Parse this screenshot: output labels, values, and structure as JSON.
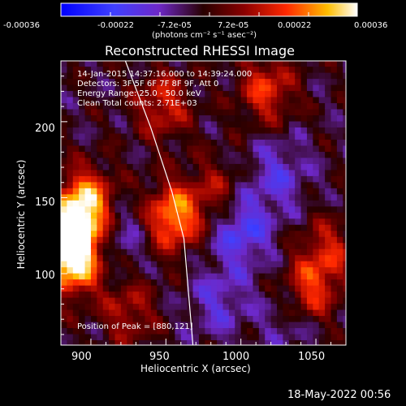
{
  "chart_data": {
    "type": "heatmap",
    "title": "Reconstructed RHESSI Image",
    "xlabel": "Heliocentric X (arcsec)",
    "ylabel": "Heliocentric Y (arcsec)",
    "xlim": [
      880,
      1070
    ],
    "ylim": [
      53,
      240
    ],
    "xticks": [
      "900",
      "950",
      "1000",
      "1050"
    ],
    "yticks": [
      "100",
      "150",
      "200"
    ],
    "colorbar": {
      "labels": [
        "-0.00036",
        "-0.00022",
        "-7.2e-05",
        "7.2e-05",
        "0.00022",
        "0.00036"
      ],
      "unit_text": "(photons cm⁻² s⁻¹ asec⁻²)",
      "range": [
        -0.00036,
        0.00036
      ]
    },
    "annotations": {
      "time": "14-Jan-2015 14:37:16.000 to 14:39:24.000",
      "detectors": "Detectors: 3F 5F 6F 7F 8F 9F, Att 0",
      "energy": "Energy Range: 25.0 - 50.0 keV",
      "clean": "Clean     Total counts: 2.71E+03",
      "peak": "Position of Peak = [880,121]"
    },
    "limb_curve": {
      "points": [
        [
          923,
          240
        ],
        [
          940,
          196
        ],
        [
          954,
          154
        ],
        [
          962,
          123
        ],
        [
          968,
          53
        ]
      ]
    },
    "hotspots": [
      {
        "x": 885,
        "y": 125,
        "v": 0.00036
      },
      {
        "x": 897,
        "y": 147,
        "v": 0.00032
      },
      {
        "x": 889,
        "y": 108,
        "v": 0.00029
      },
      {
        "x": 955,
        "y": 138,
        "v": 0.0003
      },
      {
        "x": 948,
        "y": 212,
        "v": 0.00018
      },
      {
        "x": 1017,
        "y": 222,
        "v": 0.0002
      },
      {
        "x": 1045,
        "y": 88,
        "v": 0.00022
      },
      {
        "x": 1058,
        "y": 115,
        "v": 0.00016
      },
      {
        "x": 925,
        "y": 76,
        "v": 0.00014
      },
      {
        "x": 984,
        "y": 154,
        "v": 0.00013
      }
    ],
    "coldspots": [
      {
        "x": 1000,
        "y": 130,
        "v": -0.00018
      },
      {
        "x": 920,
        "y": 125,
        "v": -9e-05
      },
      {
        "x": 1025,
        "y": 166,
        "v": -0.00012
      },
      {
        "x": 1035,
        "y": 73,
        "v": -0.0001
      },
      {
        "x": 985,
        "y": 82,
        "v": -0.00011
      }
    ]
  },
  "footer": {
    "timestamp": "18-May-2022 00:56"
  }
}
